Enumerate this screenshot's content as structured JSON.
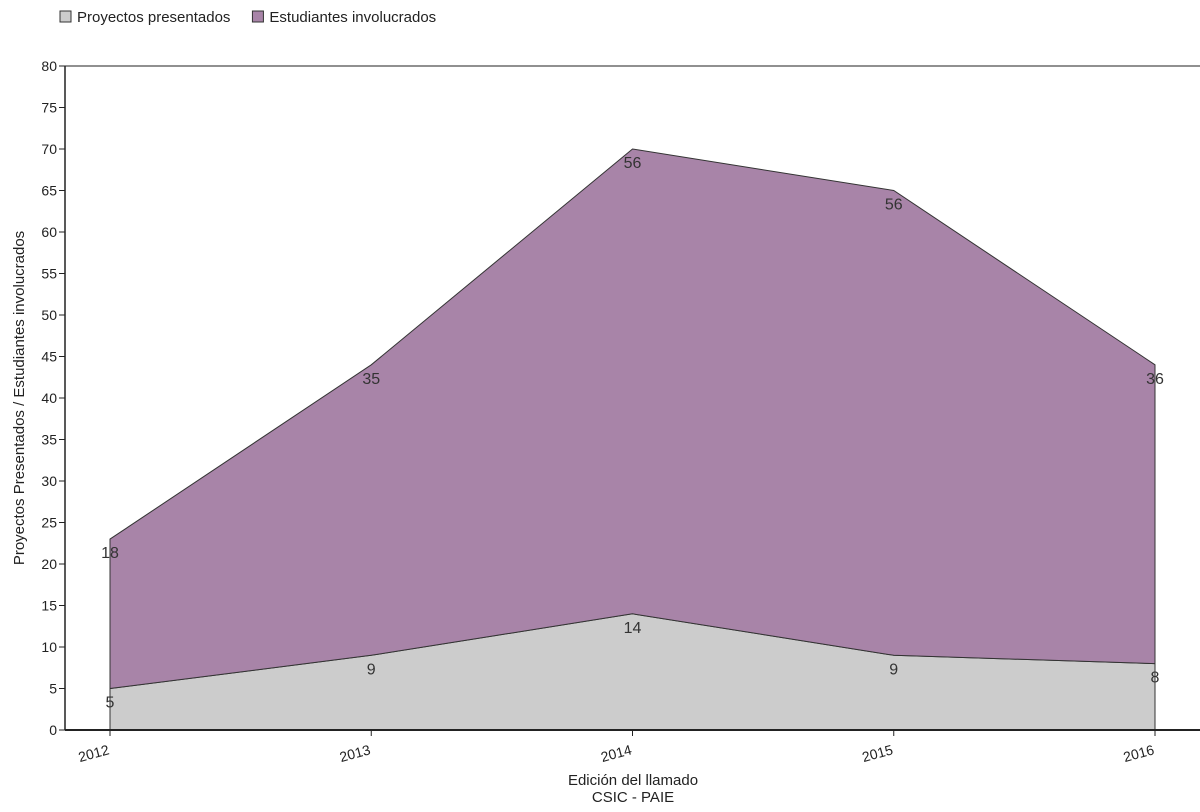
{
  "chart_data": {
    "type": "area",
    "stacked": true,
    "categories": [
      "2012",
      "2013",
      "2014",
      "2015",
      "2016"
    ],
    "series": [
      {
        "name": "Proyectos presentados",
        "values": [
          5,
          9,
          14,
          9,
          8
        ],
        "color": "#cccccc",
        "legend_color": "#cccccc"
      },
      {
        "name": "Estudiantes involucrados",
        "values": [
          18,
          35,
          56,
          56,
          36
        ],
        "color": "#a884a8",
        "legend_color": "#a884a8"
      }
    ],
    "xlabel": "Edición del llamado",
    "xlabel_secondary": "CSIC - PAIE",
    "ylabel": "Proyectos Presentados / Estudiantes involucrados",
    "ylim": [
      0,
      80
    ],
    "yticks": [
      0,
      5,
      10,
      15,
      20,
      25,
      30,
      35,
      40,
      45,
      50,
      55,
      60,
      65,
      70,
      75,
      80
    ],
    "grid": false,
    "legend_position": "top-left",
    "outline_color": "#333333"
  }
}
